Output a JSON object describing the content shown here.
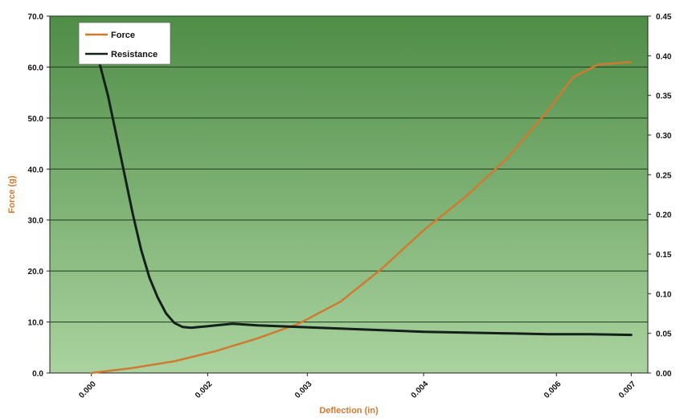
{
  "chart_data": {
    "type": "line",
    "title": "",
    "xlabel": "Deflection (in)",
    "ylabel": "Force (g)",
    "y2label": "",
    "colors": {
      "force": "#d07a30",
      "resistance": "#14201a",
      "plot_top": "#4f8d47",
      "plot_bottom": "#aad39f",
      "axis_title": "#d07a30"
    },
    "xlim": [
      0.0,
      0.0072
    ],
    "ylim": [
      0,
      70
    ],
    "y2lim": [
      0,
      0.45
    ],
    "x_ticks": [
      0.0,
      0.002,
      0.003,
      0.004,
      0.006,
      0.007
    ],
    "x_tick_labels": [
      "0.000",
      "0.002",
      "0.003",
      "0.004",
      "0.006",
      "0.007"
    ],
    "x_tick_positions": [
      0.0005,
      0.0019,
      0.0031,
      0.0045,
      0.0061,
      0.007
    ],
    "y_ticks": [
      0,
      10,
      20,
      30,
      40,
      50,
      60,
      70
    ],
    "y_tick_labels": [
      "0.0",
      "10.0",
      "20.0",
      "30.0",
      "40.0",
      "50.0",
      "60.0",
      "70.0"
    ],
    "y2_ticks": [
      0,
      0.05,
      0.1,
      0.15,
      0.2,
      0.25,
      0.3,
      0.35,
      0.4,
      0.45
    ],
    "y2_tick_labels": [
      "0.00",
      "0.05",
      "0.10",
      "0.15",
      "0.20",
      "0.25",
      "0.30",
      "0.35",
      "0.40",
      "0.45"
    ],
    "grid": true,
    "legend_position": "top-left",
    "series": [
      {
        "name": "Force",
        "axis": "left",
        "x": [
          0.0005,
          0.001,
          0.0015,
          0.002,
          0.0025,
          0.003,
          0.0035,
          0.004,
          0.0045,
          0.005,
          0.0055,
          0.006,
          0.0063,
          0.0066,
          0.007
        ],
        "y": [
          0.0,
          1.0,
          2.3,
          4.3,
          6.8,
          9.7,
          14.0,
          20.5,
          28.0,
          34.5,
          42.0,
          51.5,
          58.0,
          60.5,
          61.0
        ]
      },
      {
        "name": "Resistance",
        "axis": "right",
        "x": [
          0.0005,
          0.0006,
          0.0007,
          0.0008,
          0.0009,
          0.001,
          0.0011,
          0.0012,
          0.0013,
          0.0014,
          0.0015,
          0.0016,
          0.0017,
          0.0018,
          0.002,
          0.0022,
          0.0025,
          0.003,
          0.0035,
          0.004,
          0.0045,
          0.005,
          0.0055,
          0.006,
          0.0065,
          0.007
        ],
        "y": [
          0.42,
          0.39,
          0.35,
          0.3,
          0.25,
          0.2,
          0.155,
          0.12,
          0.095,
          0.075,
          0.063,
          0.058,
          0.057,
          0.058,
          0.06,
          0.062,
          0.06,
          0.058,
          0.056,
          0.054,
          0.052,
          0.051,
          0.05,
          0.049,
          0.049,
          0.048
        ]
      }
    ]
  }
}
